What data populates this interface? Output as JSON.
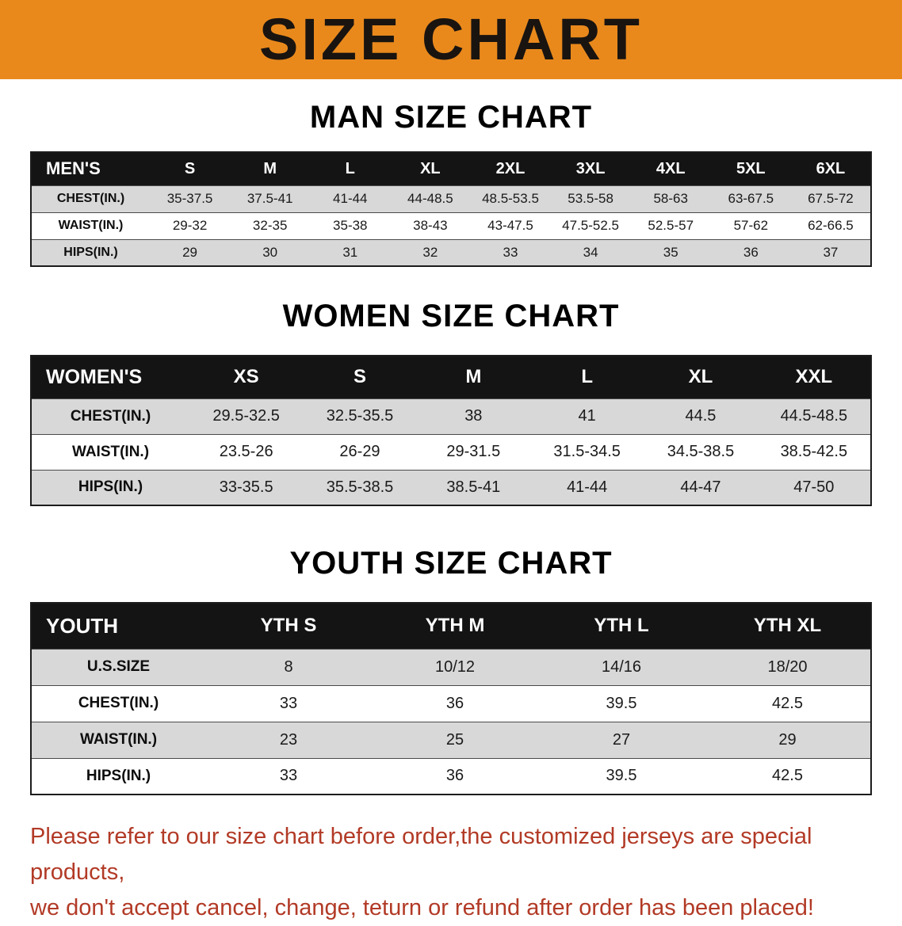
{
  "banner": {
    "title": "SIZE CHART",
    "bg_color": "#E9891C"
  },
  "sections": {
    "men": {
      "heading": "MAN SIZE CHART",
      "table": {
        "header": [
          "MEN'S",
          "S",
          "M",
          "L",
          "XL",
          "2XL",
          "3XL",
          "4XL",
          "5XL",
          "6XL"
        ],
        "rows": [
          {
            "label": "CHEST(IN.)",
            "values": [
              "35-37.5",
              "37.5-41",
              "41-44",
              "44-48.5",
              "48.5-53.5",
              "53.5-58",
              "58-63",
              "63-67.5",
              "67.5-72"
            ]
          },
          {
            "label": "WAIST(IN.)",
            "values": [
              "29-32",
              "32-35",
              "35-38",
              "38-43",
              "43-47.5",
              "47.5-52.5",
              "52.5-57",
              "57-62",
              "62-66.5"
            ]
          },
          {
            "label": "HIPS(IN.)",
            "values": [
              "29",
              "30",
              "31",
              "32",
              "33",
              "34",
              "35",
              "36",
              "37"
            ]
          }
        ]
      }
    },
    "women": {
      "heading": "WOMEN SIZE CHART",
      "table": {
        "header": [
          "WOMEN'S",
          "XS",
          "S",
          "M",
          "L",
          "XL",
          "XXL"
        ],
        "rows": [
          {
            "label": "CHEST(IN.)",
            "values": [
              "29.5-32.5",
              "32.5-35.5",
              "38",
              "41",
              "44.5",
              "44.5-48.5"
            ]
          },
          {
            "label": "WAIST(IN.)",
            "values": [
              "23.5-26",
              "26-29",
              "29-31.5",
              "31.5-34.5",
              "34.5-38.5",
              "38.5-42.5"
            ]
          },
          {
            "label": "HIPS(IN.)",
            "values": [
              "33-35.5",
              "35.5-38.5",
              "38.5-41",
              "41-44",
              "44-47",
              "47-50"
            ]
          }
        ]
      }
    },
    "youth": {
      "heading": "YOUTH SIZE CHART",
      "table": {
        "header": [
          "YOUTH",
          "YTH S",
          "YTH M",
          "YTH L",
          "YTH XL"
        ],
        "rows": [
          {
            "label": "U.S.SIZE",
            "values": [
              "8",
              "10/12",
              "14/16",
              "18/20"
            ]
          },
          {
            "label": "CHEST(IN.)",
            "values": [
              "33",
              "36",
              "39.5",
              "42.5"
            ]
          },
          {
            "label": "WAIST(IN.)",
            "values": [
              "23",
              "25",
              "27",
              "29"
            ]
          },
          {
            "label": "HIPS(IN.)",
            "values": [
              "33",
              "36",
              "39.5",
              "42.5"
            ]
          }
        ]
      }
    }
  },
  "footer": {
    "text_color": "#B23A26",
    "lines": [
      "Please refer to our size chart before order,the customized jerseys are special products,",
      "we don't accept cancel, change, teturn or refund after order has been placed!"
    ]
  }
}
